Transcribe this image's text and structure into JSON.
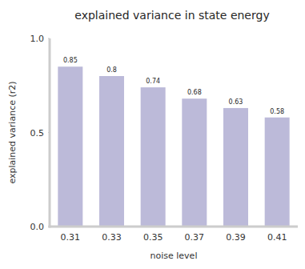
{
  "chart_data": {
    "type": "bar",
    "title": "explained variance in state energy",
    "x_label": "noise level",
    "y_label": "explained variance (r2)",
    "categories": [
      "0.31",
      "0.33",
      "0.35",
      "0.37",
      "0.39",
      "0.41"
    ],
    "values": [
      0.85,
      0.8,
      0.74,
      0.68,
      0.63,
      0.58
    ],
    "color": "#bcbad9",
    "ylim": [
      0,
      1
    ],
    "yticks": [
      {
        "value": 0,
        "label": "0.0"
      },
      {
        "value": 0.5,
        "label": "0.5"
      },
      {
        "value": 1,
        "label": "1.0"
      }
    ],
    "grid": false,
    "data_labels": true
  }
}
